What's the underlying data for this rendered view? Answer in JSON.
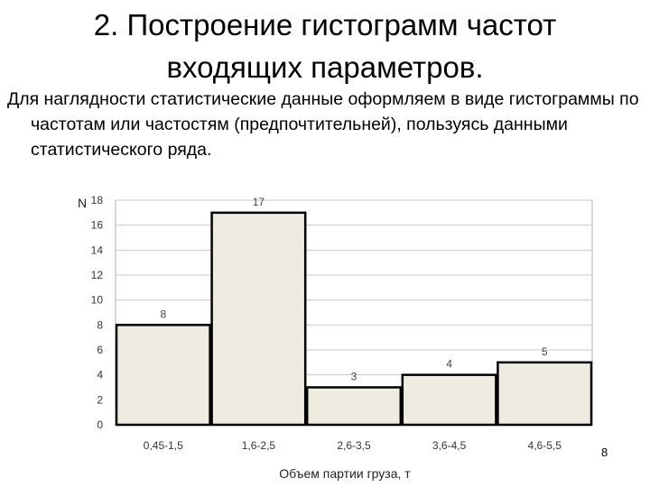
{
  "slide": {
    "title_line1": "2. Построение гистограмм частот",
    "title_line2": "входящих параметров.",
    "body": "Для наглядности статистические данные оформляем в виде гистограммы по частотам или частостям (предпочтительней), пользуясь данными статистического ряда.",
    "page_number": "8"
  },
  "chart_data": {
    "type": "bar",
    "categories": [
      "0,45-1,5",
      "1,6-2,5",
      "2,6-3,5",
      "3,6-4,5",
      "4,6-5,5"
    ],
    "values": [
      8,
      17,
      3,
      4,
      5
    ],
    "data_labels": [
      "8",
      "17",
      "3",
      "4",
      "5"
    ],
    "title": "",
    "xlabel": "Объем партии груза, т",
    "ylabel": "N",
    "ylim": [
      0,
      18
    ],
    "yticks": [
      "0",
      "2",
      "4",
      "6",
      "8",
      "10",
      "12",
      "14",
      "16",
      "18"
    ],
    "grid": true,
    "bar_color": "#eeece1",
    "bar_edge_color": "#000000",
    "legend": "none"
  }
}
